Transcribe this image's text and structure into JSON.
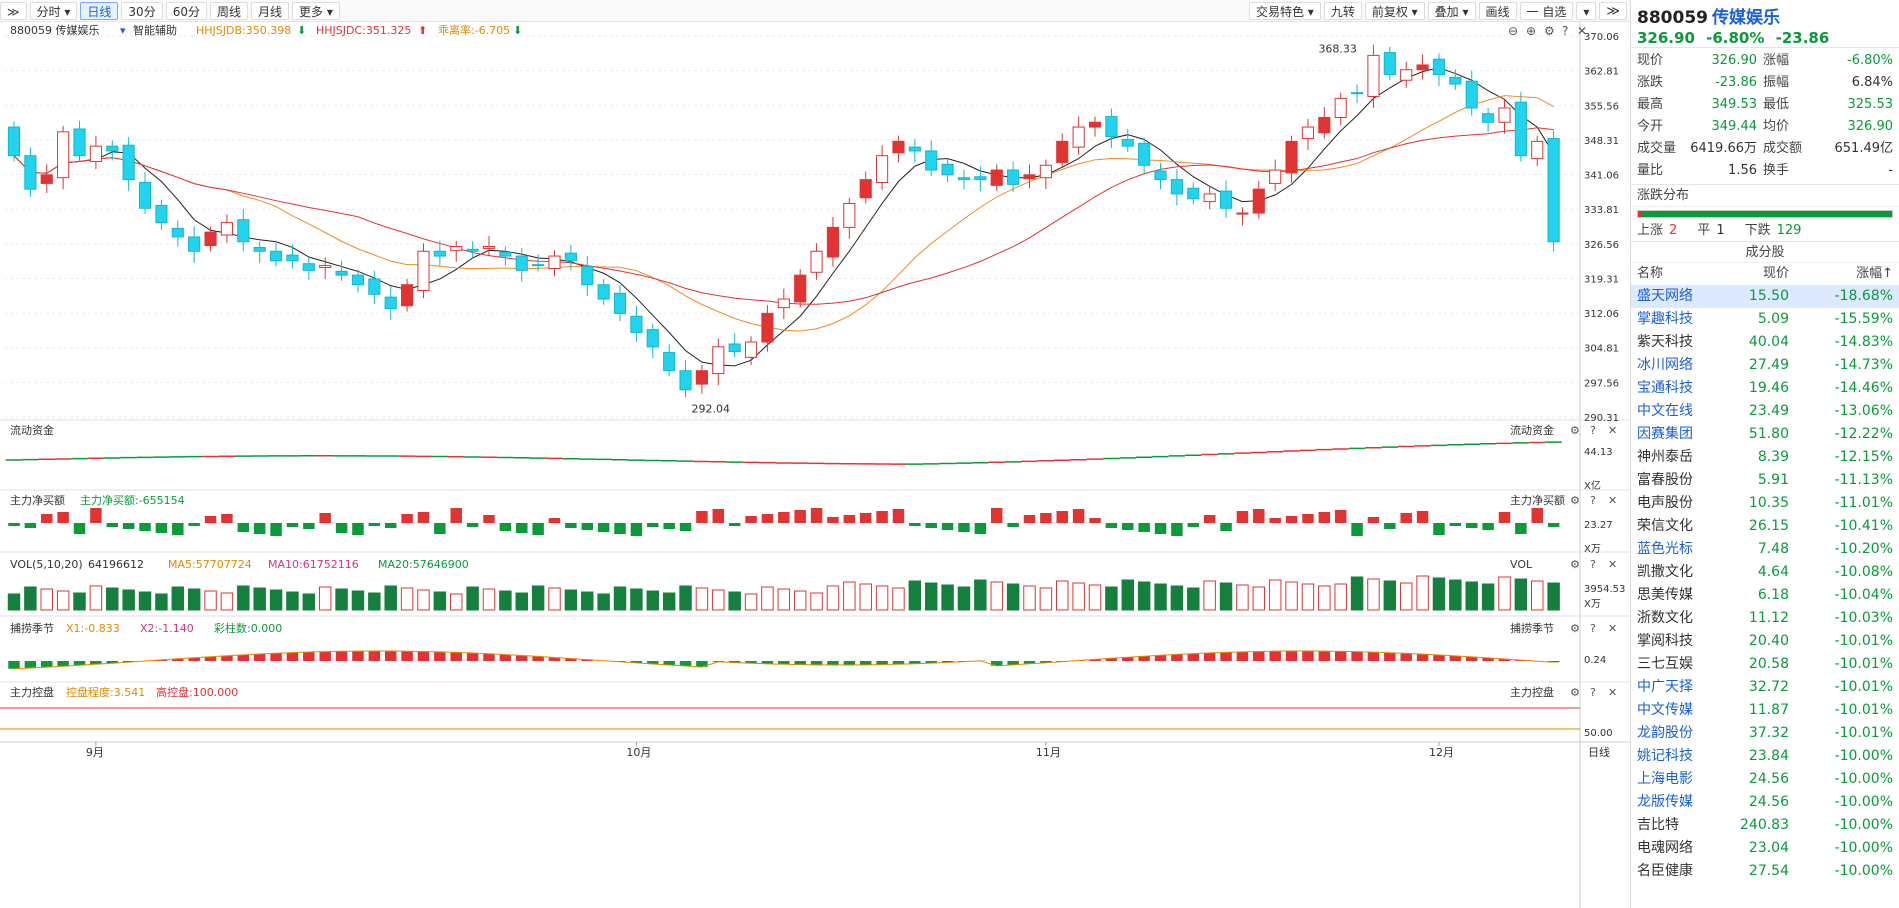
{
  "toolbar": {
    "left": [
      {
        "id": "collapse",
        "label": "≫"
      },
      {
        "id": "fenshi",
        "label": "分时 ▾"
      },
      {
        "id": "rixian",
        "label": "日线",
        "active": true
      },
      {
        "id": "m30",
        "label": "30分"
      },
      {
        "id": "m60",
        "label": "60分"
      },
      {
        "id": "zhouxian",
        "label": "周线"
      },
      {
        "id": "yuexian",
        "label": "月线"
      },
      {
        "id": "more",
        "label": "更多 ▾"
      }
    ],
    "right": [
      {
        "id": "trade",
        "label": "交易特色 ▾"
      },
      {
        "id": "jiuzhuan",
        "label": "九转"
      },
      {
        "id": "fuquan",
        "label": "前复权 ▾"
      },
      {
        "id": "diejia",
        "label": "叠加 ▾"
      },
      {
        "id": "huaxian",
        "label": "画线"
      },
      {
        "id": "zixuan",
        "label": "一 自选"
      },
      {
        "id": "menu",
        "label": "▾"
      }
    ]
  },
  "chart": {
    "code_label": "880059 传媒娱乐",
    "assist_label": "智能辅助",
    "ind1": "HHJSJDB:350.398",
    "ind2": "HHJSJDC:351.325",
    "ind3": "乖离率:-6.705",
    "price_ticks": [
      "370.06",
      "362.81",
      "355.56",
      "348.31",
      "341.06",
      "333.81",
      "326.56",
      "319.31",
      "312.06",
      "304.81",
      "297.56",
      "290.31"
    ],
    "high_label": "368.33",
    "low_label": "292.04",
    "months": [
      "9月",
      "10月",
      "11月",
      "12月"
    ],
    "period_btn": "日线",
    "panels": {
      "liudong": {
        "title": "流动资金",
        "title_r": "流动资金",
        "axis": "44.13",
        "unit": "X亿"
      },
      "jingmai": {
        "title": "主力净买额",
        "title2": "主力净买额:-655154",
        "title_r": "主力净买额",
        "axis": "23.27",
        "unit": "X万"
      },
      "vol": {
        "title": "VOL(5,10,20)",
        "v": "64196612",
        "ma5": "MA5:57707724",
        "ma10": "MA10:61752116",
        "ma20": "MA20:57646900",
        "title_r": "VOL",
        "axis": "3954.53",
        "unit": "X万"
      },
      "buhuo": {
        "title": "捕捞季节",
        "x1": "X1:-0.833",
        "x2": "X2:-1.140",
        "cai": "彩柱数:0.000",
        "title_r": "捕捞季节",
        "axis": "0.24"
      },
      "kongpan": {
        "title": "主力控盘",
        "kp": "控盘程度:3.541",
        "gk": "高控盘:100.000",
        "title_r": "主力控盘",
        "axis": "50.00"
      }
    }
  },
  "chart_data": {
    "type": "candlestick",
    "ylim": [
      290.31,
      370.06
    ],
    "high": 368.33,
    "low": 292.04,
    "last_close": 326.9,
    "closes": [
      345,
      338,
      341,
      350,
      345,
      347,
      346,
      340,
      334,
      331,
      328,
      325,
      329,
      331,
      327,
      325,
      323,
      323,
      321,
      322,
      320,
      318,
      316,
      313,
      318,
      325,
      324,
      326,
      325,
      326,
      324,
      321,
      322,
      324,
      323,
      318,
      315,
      312,
      308,
      305,
      300,
      296,
      300,
      305,
      304,
      306,
      312,
      315,
      320,
      325,
      330,
      335,
      340,
      345,
      348,
      346,
      342,
      341,
      340,
      340,
      342,
      339,
      341,
      343,
      348,
      351,
      352,
      349,
      347,
      343,
      340,
      337,
      336,
      337,
      334,
      333,
      338,
      342,
      348,
      351,
      353,
      357,
      358,
      366,
      362,
      363,
      364,
      362,
      360,
      355,
      352,
      355,
      345,
      348,
      327
    ]
  },
  "panel": {
    "code": "880059",
    "name": "传媒娱乐",
    "price": "326.90",
    "pct": "-6.80%",
    "chg": "-23.86",
    "stats": [
      {
        "l1": "现价",
        "v1": "326.90",
        "c1": "green",
        "l2": "涨幅",
        "v2": "-6.80%",
        "c2": "green"
      },
      {
        "l1": "涨跌",
        "v1": "-23.86",
        "c1": "green",
        "l2": "振幅",
        "v2": "6.84%",
        "c2": ""
      },
      {
        "l1": "最高",
        "v1": "349.53",
        "c1": "green",
        "l2": "最低",
        "v2": "325.53",
        "c2": "green"
      },
      {
        "l1": "今开",
        "v1": "349.44",
        "c1": "green",
        "l2": "均价",
        "v2": "326.90",
        "c2": "green"
      },
      {
        "l1": "成交量",
        "v1": "6419.66万",
        "c1": "",
        "l2": "成交额",
        "v2": "651.49亿",
        "c2": ""
      },
      {
        "l1": "量比",
        "v1": "1.56",
        "c1": "",
        "l2": "换手",
        "v2": "-",
        "c2": ""
      }
    ],
    "dist_title": "涨跌分布",
    "dist": {
      "up_label": "上涨",
      "up": "2",
      "flat_label": "平",
      "flat": "1",
      "down_label": "下跌",
      "down": "129",
      "up_fraction": 0.015
    },
    "comp_title": "成分股",
    "comp_head": {
      "name": "名称",
      "price": "现价",
      "pct": "涨幅↑"
    },
    "components": [
      {
        "name": "盛天网络",
        "price": "15.50",
        "pct": "-18.68%",
        "link": true,
        "sel": true
      },
      {
        "name": "掌趣科技",
        "price": "5.09",
        "pct": "-15.59%",
        "link": true
      },
      {
        "name": "紫天科技",
        "price": "40.04",
        "pct": "-14.83%",
        "link": false
      },
      {
        "name": "冰川网络",
        "price": "27.49",
        "pct": "-14.73%",
        "link": true
      },
      {
        "name": "宝通科技",
        "price": "19.46",
        "pct": "-14.46%",
        "link": true
      },
      {
        "name": "中文在线",
        "price": "23.49",
        "pct": "-13.06%",
        "link": true
      },
      {
        "name": "因赛集团",
        "price": "51.80",
        "pct": "-12.22%",
        "link": true
      },
      {
        "name": "神州泰岳",
        "price": "8.39",
        "pct": "-12.15%",
        "link": false
      },
      {
        "name": "富春股份",
        "price": "5.91",
        "pct": "-11.13%",
        "link": false
      },
      {
        "name": "电声股份",
        "price": "10.35",
        "pct": "-11.01%",
        "link": false
      },
      {
        "name": "荣信文化",
        "price": "26.15",
        "pct": "-10.41%",
        "link": false
      },
      {
        "name": "蓝色光标",
        "price": "7.48",
        "pct": "-10.20%",
        "link": true
      },
      {
        "name": "凯撒文化",
        "price": "4.64",
        "pct": "-10.08%",
        "link": false
      },
      {
        "name": "思美传媒",
        "price": "6.18",
        "pct": "-10.04%",
        "link": false
      },
      {
        "name": "浙数文化",
        "price": "11.12",
        "pct": "-10.03%",
        "link": false
      },
      {
        "name": "掌阅科技",
        "price": "20.40",
        "pct": "-10.01%",
        "link": false
      },
      {
        "name": "三七互娱",
        "price": "20.58",
        "pct": "-10.01%",
        "link": false
      },
      {
        "name": "中广天择",
        "price": "32.72",
        "pct": "-10.01%",
        "link": true
      },
      {
        "name": "中文传媒",
        "price": "11.87",
        "pct": "-10.01%",
        "link": true
      },
      {
        "name": "龙韵股份",
        "price": "37.32",
        "pct": "-10.01%",
        "link": true
      },
      {
        "name": "姚记科技",
        "price": "23.84",
        "pct": "-10.00%",
        "link": true
      },
      {
        "name": "上海电影",
        "price": "24.56",
        "pct": "-10.00%",
        "link": true
      },
      {
        "name": "龙版传媒",
        "price": "24.56",
        "pct": "-10.00%",
        "link": true
      },
      {
        "name": "吉比特",
        "price": "240.83",
        "pct": "-10.00%",
        "link": false
      },
      {
        "name": "电魂网络",
        "price": "23.04",
        "pct": "-10.00%",
        "link": false
      },
      {
        "name": "名臣健康",
        "price": "27.54",
        "pct": "-10.00%",
        "link": false
      }
    ]
  }
}
